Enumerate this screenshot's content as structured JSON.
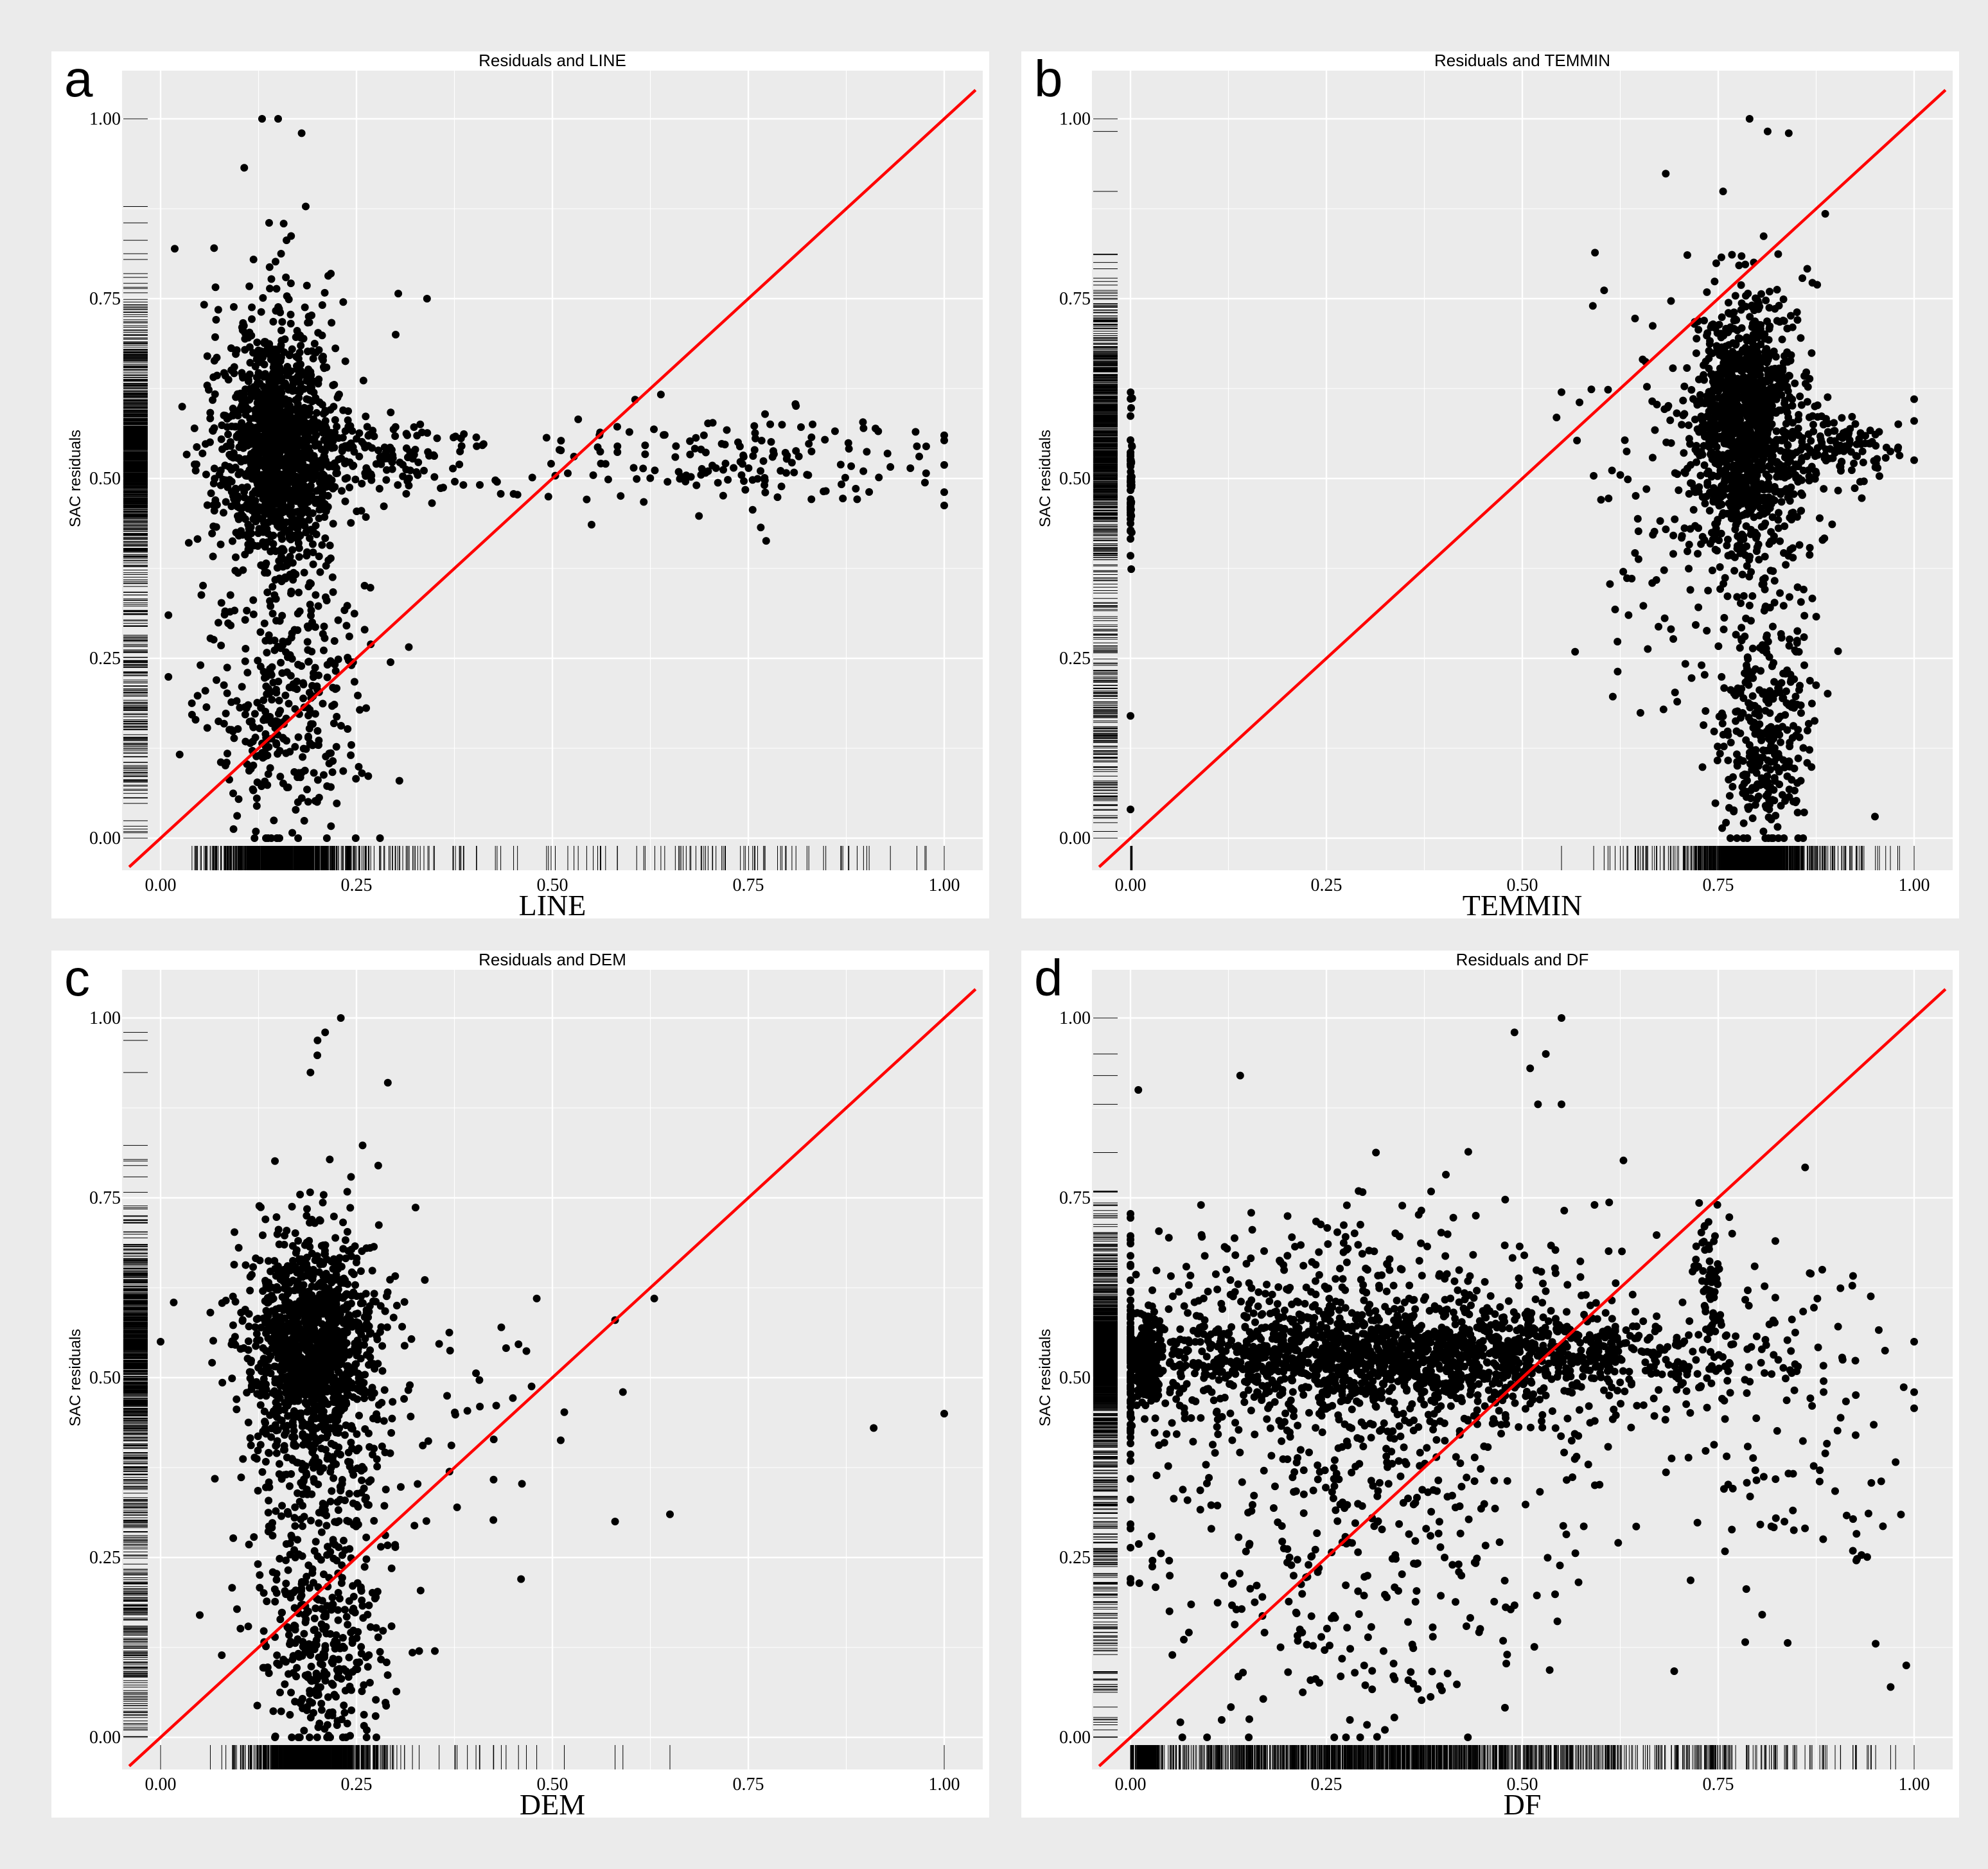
{
  "chart_data": [
    {
      "panel": "a",
      "type": "scatter",
      "title": "Residuals and LINE",
      "xlabel": "LINE",
      "ylabel": "SAC residuals",
      "xlim": [
        0,
        1
      ],
      "ylim": [
        0,
        1
      ],
      "x_ticks": [
        "0.00",
        "0.25",
        "0.50",
        "0.75",
        "1.00"
      ],
      "y_ticks": [
        "0.00",
        "0.25",
        "0.50",
        "0.75",
        "1.00"
      ],
      "reference_line": {
        "slope": 1,
        "intercept": 0,
        "color": "#ff0000"
      },
      "point_color": "#000000",
      "clusters": [
        {
          "cx": 0.15,
          "cy": 0.54,
          "sx": 0.035,
          "sy": 0.07,
          "n": 900
        },
        {
          "cx": 0.15,
          "cy": 0.53,
          "sx": 0.045,
          "sy": 0.14,
          "n": 500
        },
        {
          "cx": 0.16,
          "cy": 0.16,
          "sx": 0.05,
          "sy": 0.09,
          "n": 300
        },
        {
          "cx": 0.27,
          "cy": 0.53,
          "sx": 0.07,
          "sy": 0.03,
          "n": 160
        },
        {
          "cx": 0.72,
          "cy": 0.52,
          "sx": 0.15,
          "sy": 0.035,
          "n": 170
        }
      ],
      "points": [
        [
          0.15,
          1.0
        ],
        [
          0.18,
          0.98
        ],
        [
          0.3,
          0.7
        ],
        [
          0.34,
          0.75
        ],
        [
          1.0,
          0.56
        ],
        [
          0.01,
          0.31
        ],
        [
          0.28,
          0.0
        ]
      ]
    },
    {
      "panel": "b",
      "type": "scatter",
      "title": "Residuals and TEMMIN",
      "xlabel": "TEMMIN",
      "ylabel": "SAC residuals",
      "xlim": [
        0,
        1
      ],
      "ylim": [
        0,
        1
      ],
      "x_ticks": [
        "0.00",
        "0.25",
        "0.50",
        "0.75",
        "1.00"
      ],
      "y_ticks": [
        "0.00",
        "0.25",
        "0.50",
        "0.75",
        "1.00"
      ],
      "reference_line": {
        "slope": 1,
        "intercept": 0,
        "color": "#ff0000"
      },
      "point_color": "#000000",
      "clusters": [
        {
          "cx": 0.78,
          "cy": 0.58,
          "sx": 0.03,
          "sy": 0.08,
          "n": 900
        },
        {
          "cx": 0.8,
          "cy": 0.5,
          "sx": 0.04,
          "sy": 0.14,
          "n": 400
        },
        {
          "cx": 0.81,
          "cy": 0.14,
          "sx": 0.03,
          "sy": 0.08,
          "n": 300
        },
        {
          "cx": 0.9,
          "cy": 0.54,
          "sx": 0.04,
          "sy": 0.025,
          "n": 140
        },
        {
          "cx": 0.68,
          "cy": 0.45,
          "sx": 0.06,
          "sy": 0.15,
          "n": 100
        },
        {
          "cx": 0.0,
          "cy": 0.5,
          "sx": 0.001,
          "sy": 0.05,
          "n": 60
        }
      ],
      "points": [
        [
          0.79,
          1.0
        ],
        [
          0.84,
          0.98
        ],
        [
          0.55,
          0.62
        ],
        [
          0.59,
          0.74
        ],
        [
          1.0,
          0.58
        ],
        [
          0.0,
          0.04
        ],
        [
          0.0,
          0.17
        ],
        [
          0.95,
          0.03
        ]
      ]
    },
    {
      "panel": "c",
      "type": "scatter",
      "title": "Residuals and DEM",
      "xlabel": "DEM",
      "ylabel": "SAC residuals",
      "xlim": [
        0,
        1
      ],
      "ylim": [
        0,
        1
      ],
      "x_ticks": [
        "0.00",
        "0.25",
        "0.50",
        "0.75",
        "1.00"
      ],
      "y_ticks": [
        "0.00",
        "0.25",
        "0.50",
        "0.75",
        "1.00"
      ],
      "reference_line": {
        "slope": 1,
        "intercept": 0,
        "color": "#ff0000"
      },
      "point_color": "#000000",
      "clusters": [
        {
          "cx": 0.19,
          "cy": 0.55,
          "sx": 0.04,
          "sy": 0.07,
          "n": 1000
        },
        {
          "cx": 0.2,
          "cy": 0.4,
          "sx": 0.045,
          "sy": 0.15,
          "n": 500
        },
        {
          "cx": 0.21,
          "cy": 0.12,
          "sx": 0.04,
          "sy": 0.07,
          "n": 250
        },
        {
          "cx": 0.38,
          "cy": 0.45,
          "sx": 0.06,
          "sy": 0.12,
          "n": 35
        }
      ],
      "points": [
        [
          0.23,
          1.0
        ],
        [
          0.21,
          0.98
        ],
        [
          0.29,
          0.91
        ],
        [
          0.0,
          0.55
        ],
        [
          0.05,
          0.17
        ],
        [
          0.48,
          0.61
        ],
        [
          0.58,
          0.58
        ],
        [
          0.59,
          0.48
        ],
        [
          0.63,
          0.61
        ],
        [
          0.65,
          0.31
        ],
        [
          0.91,
          0.43
        ],
        [
          1.0,
          0.45
        ],
        [
          0.46,
          0.22
        ],
        [
          0.58,
          0.3
        ],
        [
          0.35,
          0.12
        ],
        [
          0.33,
          0.12
        ]
      ]
    },
    {
      "panel": "d",
      "type": "scatter",
      "title": "Residuals and DF",
      "xlabel": "DF",
      "ylabel": "SAC residuals",
      "xlim": [
        0,
        1
      ],
      "ylim": [
        0,
        1
      ],
      "x_ticks": [
        "0.00",
        "0.25",
        "0.50",
        "0.75",
        "1.00"
      ],
      "y_ticks": [
        "0.00",
        "0.25",
        "0.50",
        "0.75",
        "1.00"
      ],
      "reference_line": {
        "slope": 1,
        "intercept": 0,
        "color": "#ff0000"
      },
      "point_color": "#000000",
      "clusters": [
        {
          "cx": 0.36,
          "cy": 0.53,
          "sx": 0.2,
          "sy": 0.03,
          "n": 1400
        },
        {
          "cx": 0.3,
          "cy": 0.52,
          "sx": 0.18,
          "sy": 0.1,
          "n": 900
        },
        {
          "cx": 0.3,
          "cy": 0.2,
          "sx": 0.15,
          "sy": 0.12,
          "n": 250
        },
        {
          "cx": 0.02,
          "cy": 0.52,
          "sx": 0.008,
          "sy": 0.03,
          "n": 300
        },
        {
          "cx": 0.74,
          "cy": 0.62,
          "sx": 0.008,
          "sy": 0.06,
          "n": 60
        },
        {
          "cx": 0.85,
          "cy": 0.45,
          "sx": 0.07,
          "sy": 0.15,
          "n": 120
        }
      ],
      "points": [
        [
          0.55,
          1.0
        ],
        [
          0.49,
          0.98
        ],
        [
          0.53,
          0.95
        ],
        [
          0.51,
          0.93
        ],
        [
          0.55,
          0.88
        ],
        [
          0.52,
          0.88
        ],
        [
          0.14,
          0.92
        ],
        [
          0.01,
          0.9
        ],
        [
          1.0,
          0.55
        ],
        [
          0.99,
          0.1
        ],
        [
          0.97,
          0.07
        ]
      ]
    }
  ]
}
